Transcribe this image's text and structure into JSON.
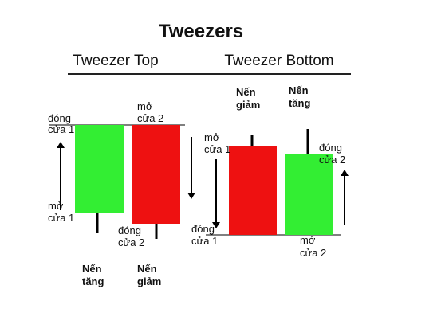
{
  "title": "Tweezers",
  "panels": [
    {
      "heading": "Tweezer Top",
      "labels": [
        [
          "đóng",
          "cửa 1"
        ],
        [
          "mở",
          "cửa 2"
        ],
        [
          "mở",
          "cửa 1"
        ],
        [
          "đóng",
          "cửa 2"
        ],
        [
          "Nến",
          "tăng"
        ],
        [
          "Nến",
          "giảm"
        ]
      ]
    },
    {
      "heading": "Tweezer Bottom",
      "labels": [
        [
          "Nến",
          "giảm"
        ],
        [
          "Nến",
          "tăng"
        ],
        [
          "mở",
          "cửa 1"
        ],
        [
          "đóng",
          "cửa 2"
        ],
        [
          "đóng",
          "cửa 1"
        ],
        [
          "mở",
          "cửa 2"
        ]
      ]
    }
  ]
}
